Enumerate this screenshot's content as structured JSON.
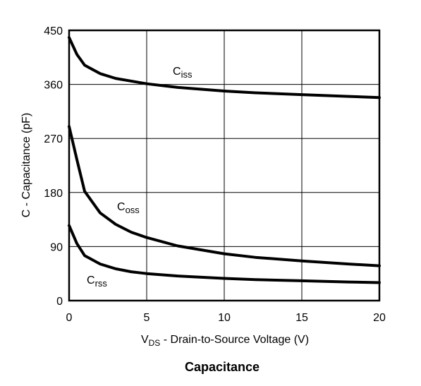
{
  "chart_data": {
    "type": "line",
    "title": "Capacitance",
    "xlabel": {
      "main": "V",
      "sub": "DS",
      "rest": " - Drain-to-Source Voltage (V)"
    },
    "ylabel": "C - Capacitance (pF)",
    "xlim": [
      0,
      20
    ],
    "ylim": [
      0,
      450
    ],
    "xticks": [
      0,
      5,
      10,
      15,
      20
    ],
    "yticks": [
      0,
      90,
      180,
      270,
      360,
      450
    ],
    "grid": true,
    "series": [
      {
        "name": {
          "main": "C",
          "sub": "iss"
        },
        "x": [
          0,
          0.5,
          1,
          2,
          3,
          5,
          7,
          10,
          12,
          15,
          18,
          20
        ],
        "y": [
          438,
          410,
          392,
          378,
          370,
          361,
          355,
          349,
          346,
          343,
          340,
          338
        ]
      },
      {
        "name": {
          "main": "C",
          "sub": "oss"
        },
        "x": [
          0,
          0.5,
          1,
          2,
          3,
          4,
          5,
          7,
          10,
          12,
          15,
          18,
          20
        ],
        "y": [
          290,
          235,
          182,
          146,
          127,
          114,
          105,
          91,
          78,
          72,
          66,
          61,
          58
        ]
      },
      {
        "name": {
          "main": "C",
          "sub": "rss"
        },
        "x": [
          0,
          0.5,
          1,
          2,
          3,
          4,
          5,
          7,
          10,
          12,
          15,
          18,
          20
        ],
        "y": [
          125,
          95,
          75,
          61,
          53,
          48,
          45,
          41,
          37,
          35,
          33,
          31,
          30
        ]
      }
    ]
  }
}
